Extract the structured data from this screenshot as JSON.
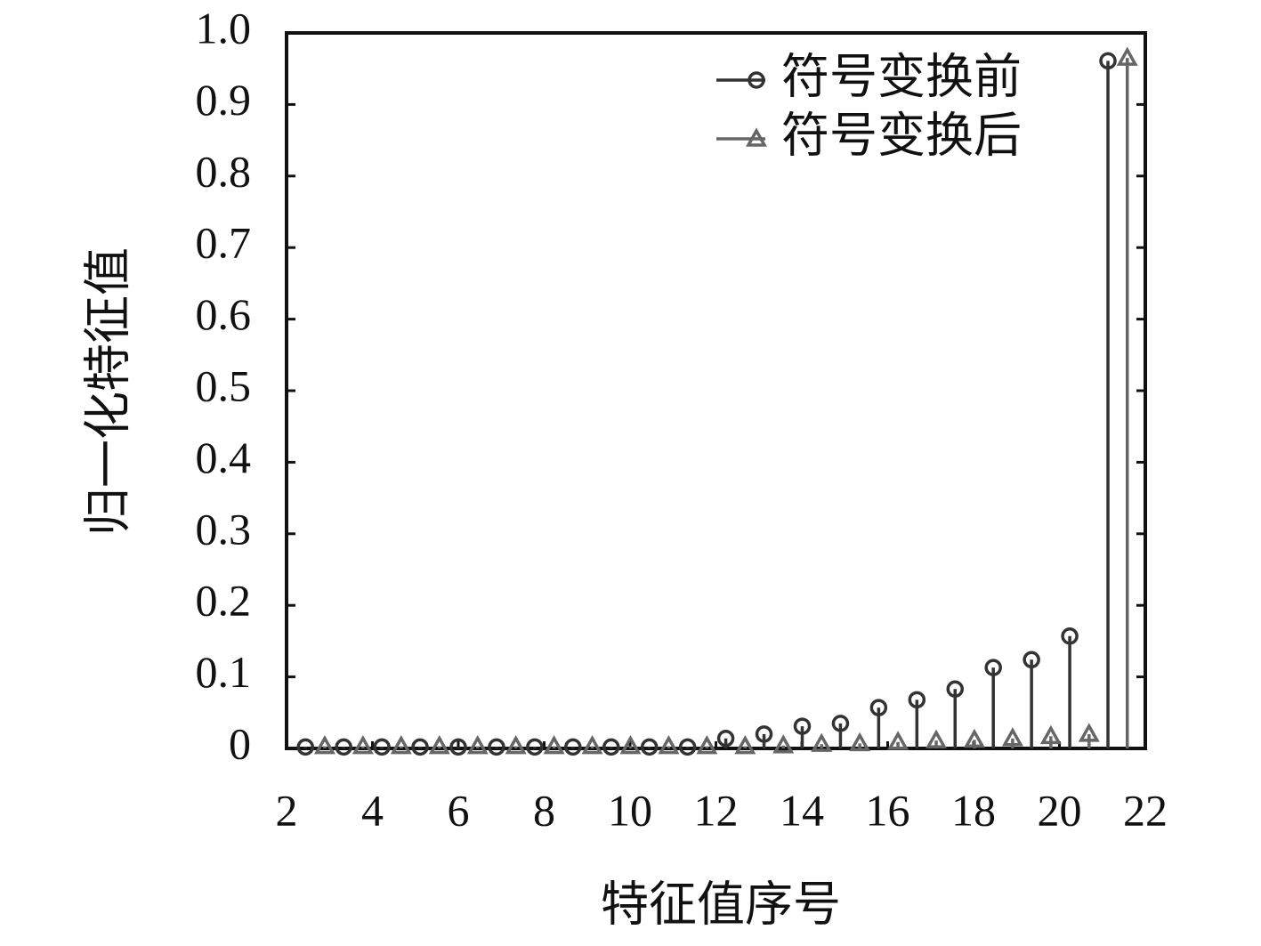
{
  "chart_data": {
    "type": "stem",
    "x_label": "特征值序号",
    "y_label": "归一化特征值",
    "xlim": [
      2,
      22
    ],
    "xticks": [
      2,
      4,
      6,
      8,
      10,
      12,
      14,
      16,
      18,
      20,
      22
    ],
    "ylim": [
      0,
      1.0
    ],
    "yticks": [
      0,
      0.1,
      0.2,
      0.3,
      0.4,
      0.5,
      0.6,
      0.7,
      0.8,
      0.9,
      {
        "value": 1.0,
        "label": "1.0"
      }
    ],
    "legend": "upper right",
    "series": [
      {
        "name": "符号变换前",
        "color": "#333333",
        "marker": "circle",
        "x": [
          2.44,
          3.33,
          4.22,
          5.11,
          6.0,
          6.89,
          7.78,
          8.67,
          9.56,
          10.45,
          11.34,
          12.23,
          13.12,
          14.01,
          14.9,
          15.79,
          16.68,
          17.57,
          18.46,
          19.35,
          20.24,
          21.13
        ],
        "values": [
          0.002,
          0.002,
          0.002,
          0.002,
          0.002,
          0.002,
          0.002,
          0.002,
          0.002,
          0.002,
          0.002,
          0.014,
          0.02,
          0.031,
          0.035,
          0.057,
          0.068,
          0.083,
          0.113,
          0.124,
          0.157,
          0.961
        ]
      },
      {
        "name": "符号变换后",
        "color": "#666666",
        "marker": "triangle",
        "x": [
          2.89,
          3.78,
          4.67,
          5.56,
          6.45,
          7.34,
          8.23,
          9.12,
          10.01,
          10.9,
          11.79,
          12.68,
          13.57,
          14.46,
          15.35,
          16.24,
          17.13,
          18.02,
          18.91,
          19.8,
          20.69,
          21.58
        ],
        "values": [
          0.003,
          0.003,
          0.003,
          0.003,
          0.003,
          0.003,
          0.003,
          0.003,
          0.003,
          0.003,
          0.003,
          0.003,
          0.004,
          0.006,
          0.007,
          0.009,
          0.011,
          0.012,
          0.014,
          0.017,
          0.02,
          0.965
        ]
      }
    ]
  }
}
